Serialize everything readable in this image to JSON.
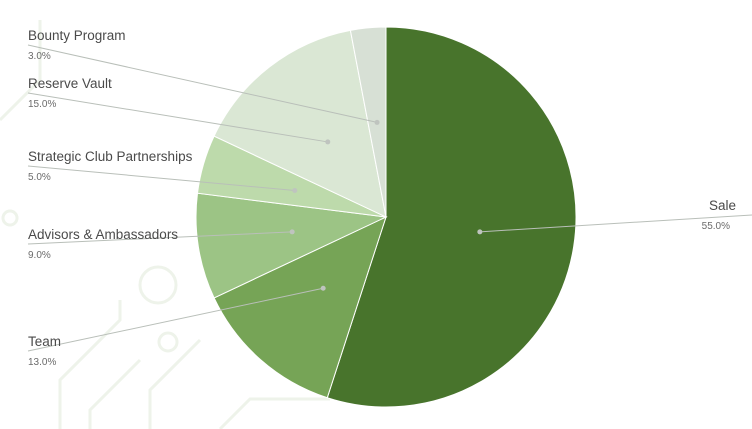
{
  "colors": {
    "background": "#ffffff",
    "label_text": "#4a4a4a",
    "percent_text": "#6b6b6b",
    "leader_line": "#b9bfb9"
  },
  "chart_data": {
    "type": "pie",
    "title": "",
    "start_angle_deg": 0,
    "direction": "clockwise",
    "slices": [
      {
        "label": "Sale",
        "value": 55.0,
        "value_label": "55.0%",
        "color": "#48742c"
      },
      {
        "label": "Team",
        "value": 13.0,
        "value_label": "13.0%",
        "color": "#76a456"
      },
      {
        "label": "Advisors & Ambassadors",
        "value": 9.0,
        "value_label": "9.0%",
        "color": "#9cc485"
      },
      {
        "label": "Strategic Club Partnerships",
        "value": 5.0,
        "value_label": "5.0%",
        "color": "#bddaab"
      },
      {
        "label": "Reserve Vault",
        "value": 15.0,
        "value_label": "15.0%",
        "color": "#dae7d4"
      },
      {
        "label": "Bounty Program",
        "value": 3.0,
        "value_label": "3.0%",
        "color": "#d7e0d5"
      }
    ]
  }
}
